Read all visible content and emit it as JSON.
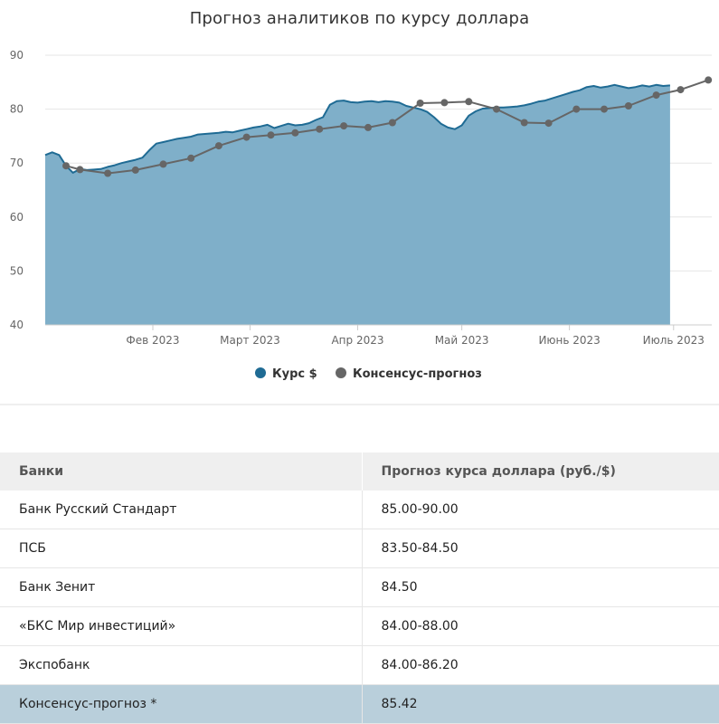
{
  "chart_data": {
    "type": "area",
    "title": "Прогноз аналитиков по курсу доллара",
    "xlabel": "",
    "ylabel": "",
    "ylim": [
      40,
      90
    ],
    "yticks": [
      40,
      50,
      60,
      70,
      80,
      90
    ],
    "xlim": [
      "2023-01-01",
      "2023-07-12"
    ],
    "xticks": [
      {
        "date": "2023-02-01",
        "label": "Фев 2023"
      },
      {
        "date": "2023-03-01",
        "label": "Март 2023"
      },
      {
        "date": "2023-04-01",
        "label": "Апр 2023"
      },
      {
        "date": "2023-05-01",
        "label": "Май 2023"
      },
      {
        "date": "2023-06-01",
        "label": "Июнь 2023"
      },
      {
        "date": "2023-07-01",
        "label": "Июль 2023"
      }
    ],
    "legend_position": "bottom",
    "series": [
      {
        "name": "Курс $",
        "kind": "area",
        "color": "#1f6b94",
        "fill": "#7fafc9",
        "x": [
          "2023-01-01",
          "2023-01-03",
          "2023-01-05",
          "2023-01-07",
          "2023-01-09",
          "2023-01-11",
          "2023-01-13",
          "2023-01-15",
          "2023-01-17",
          "2023-01-19",
          "2023-01-21",
          "2023-01-23",
          "2023-01-25",
          "2023-01-27",
          "2023-01-29",
          "2023-01-31",
          "2023-02-02",
          "2023-02-04",
          "2023-02-06",
          "2023-02-08",
          "2023-02-10",
          "2023-02-12",
          "2023-02-14",
          "2023-02-16",
          "2023-02-18",
          "2023-02-20",
          "2023-02-22",
          "2023-02-24",
          "2023-02-26",
          "2023-02-28",
          "2023-03-02",
          "2023-03-04",
          "2023-03-06",
          "2023-03-08",
          "2023-03-10",
          "2023-03-12",
          "2023-03-14",
          "2023-03-16",
          "2023-03-18",
          "2023-03-20",
          "2023-03-22",
          "2023-03-24",
          "2023-03-26",
          "2023-03-28",
          "2023-03-30",
          "2023-04-01",
          "2023-04-03",
          "2023-04-05",
          "2023-04-07",
          "2023-04-09",
          "2023-04-11",
          "2023-04-13",
          "2023-04-15",
          "2023-04-17",
          "2023-04-19",
          "2023-04-21",
          "2023-04-23",
          "2023-04-25",
          "2023-04-27",
          "2023-04-29",
          "2023-05-01",
          "2023-05-03",
          "2023-05-05",
          "2023-05-07",
          "2023-05-09",
          "2023-05-11",
          "2023-05-13",
          "2023-05-15",
          "2023-05-17",
          "2023-05-19",
          "2023-05-21",
          "2023-05-23",
          "2023-05-25",
          "2023-05-27",
          "2023-05-29",
          "2023-05-31",
          "2023-06-02",
          "2023-06-04",
          "2023-06-06",
          "2023-06-08",
          "2023-06-10",
          "2023-06-12",
          "2023-06-14",
          "2023-06-16",
          "2023-06-18",
          "2023-06-20",
          "2023-06-22",
          "2023-06-24",
          "2023-06-26",
          "2023-06-28",
          "2023-06-30"
        ],
        "values": [
          71.5,
          72.0,
          71.5,
          69.5,
          68.2,
          68.9,
          68.7,
          68.8,
          68.9,
          69.3,
          69.6,
          70.0,
          70.3,
          70.6,
          71.0,
          72.4,
          73.6,
          73.9,
          74.2,
          74.5,
          74.7,
          74.9,
          75.3,
          75.4,
          75.5,
          75.6,
          75.8,
          75.7,
          76.0,
          76.3,
          76.6,
          76.8,
          77.1,
          76.5,
          76.9,
          77.3,
          77.0,
          77.1,
          77.4,
          78.0,
          78.5,
          80.8,
          81.5,
          81.6,
          81.3,
          81.2,
          81.4,
          81.5,
          81.3,
          81.5,
          81.4,
          81.2,
          80.6,
          80.3,
          80.0,
          79.5,
          78.5,
          77.3,
          76.6,
          76.3,
          77.0,
          78.8,
          79.6,
          80.1,
          80.2,
          80.3,
          80.3,
          80.4,
          80.5,
          80.7,
          81.0,
          81.4,
          81.6,
          82.0,
          82.4,
          82.8,
          83.2,
          83.5,
          84.1,
          84.3,
          84.0,
          84.2,
          84.5,
          84.2,
          83.9,
          84.1,
          84.4,
          84.2,
          84.5,
          84.3,
          84.4
        ]
      },
      {
        "name": "Консенсус-прогноз",
        "kind": "line-markers",
        "color": "#666666",
        "x": [
          "2023-01-07",
          "2023-01-11",
          "2023-01-19",
          "2023-01-27",
          "2023-02-04",
          "2023-02-12",
          "2023-02-20",
          "2023-02-28",
          "2023-03-07",
          "2023-03-14",
          "2023-03-21",
          "2023-03-28",
          "2023-04-04",
          "2023-04-11",
          "2023-04-19",
          "2023-04-26",
          "2023-05-03",
          "2023-05-11",
          "2023-05-19",
          "2023-05-26",
          "2023-06-03",
          "2023-06-11",
          "2023-06-18",
          "2023-06-26",
          "2023-07-03",
          "2023-07-11"
        ],
        "values": [
          69.5,
          68.8,
          68.1,
          68.7,
          69.8,
          70.9,
          73.2,
          74.8,
          75.2,
          75.6,
          76.3,
          76.9,
          76.6,
          77.5,
          81.1,
          81.2,
          81.4,
          80.0,
          77.5,
          77.4,
          80.0,
          80.0,
          80.6,
          82.6,
          83.6,
          85.4
        ]
      }
    ]
  },
  "table": {
    "headers": [
      "Банки",
      "Прогноз курса доллара (руб./$)"
    ],
    "rows": [
      {
        "bank": "Банк Русский Стандарт",
        "forecast": "85.00-90.00"
      },
      {
        "bank": "ПСБ",
        "forecast": "83.50-84.50"
      },
      {
        "bank": "Банк Зенит",
        "forecast": "84.50"
      },
      {
        "bank": "«БКС Мир инвестиций»",
        "forecast": "84.00-88.00"
      },
      {
        "bank": "Экспобанк",
        "forecast": "84.00-86.20"
      },
      {
        "bank": "Консенсус-прогноз *",
        "forecast": "85.42"
      }
    ],
    "highlight_color": "#b9cfdb"
  }
}
